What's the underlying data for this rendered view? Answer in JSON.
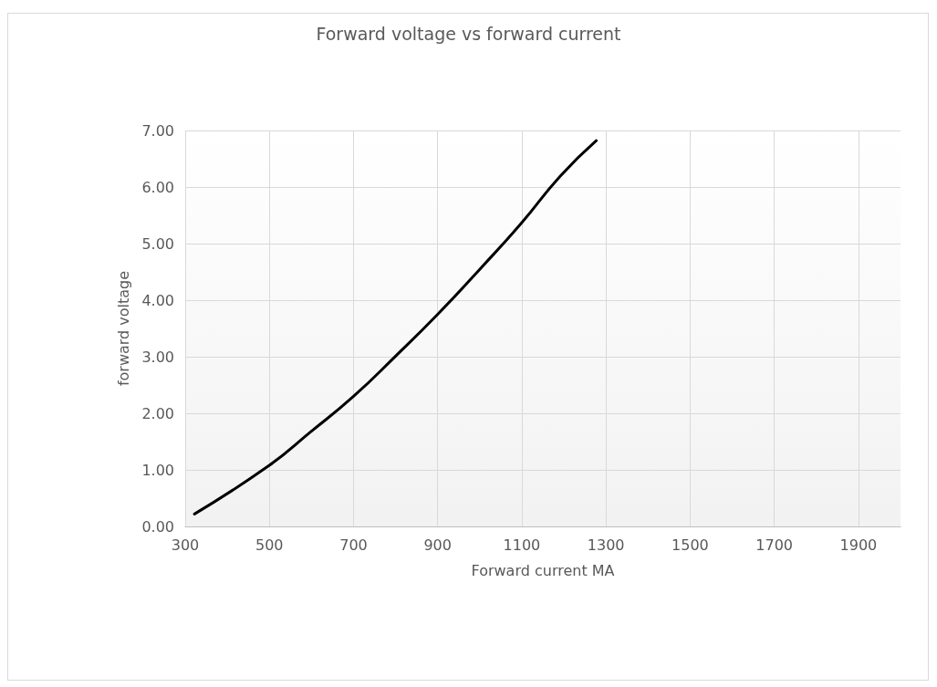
{
  "chart_data": {
    "type": "line",
    "title": "Forward voltage vs forward current",
    "xlabel": "Forward current MA",
    "ylabel": "forward voltage",
    "series": [
      {
        "color": "#000000",
        "x": [
          322,
          500,
          598,
          700,
          800,
          900,
          1003,
          1100,
          1191,
          1277
        ],
        "values": [
          0.22,
          1.08,
          1.67,
          2.3,
          3.01,
          3.75,
          4.57,
          5.37,
          6.19,
          6.82
        ]
      }
    ],
    "xlim": [
      300,
      2000
    ],
    "xticks": [
      300,
      500,
      700,
      900,
      1100,
      1300,
      1500,
      1700,
      1900
    ],
    "ylim": [
      0,
      7
    ],
    "yticks": [
      {
        "value": 0,
        "label": "0.00"
      },
      {
        "value": 1,
        "label": "1.00"
      },
      {
        "value": 2,
        "label": "2.00"
      },
      {
        "value": 3,
        "label": "3.00"
      },
      {
        "value": 4,
        "label": "4.00"
      },
      {
        "value": 5,
        "label": "5.00"
      },
      {
        "value": 6,
        "label": "6.00"
      },
      {
        "value": 7,
        "label": "7.00"
      }
    ],
    "grid": true,
    "marker": "none",
    "line_style": "solid"
  }
}
